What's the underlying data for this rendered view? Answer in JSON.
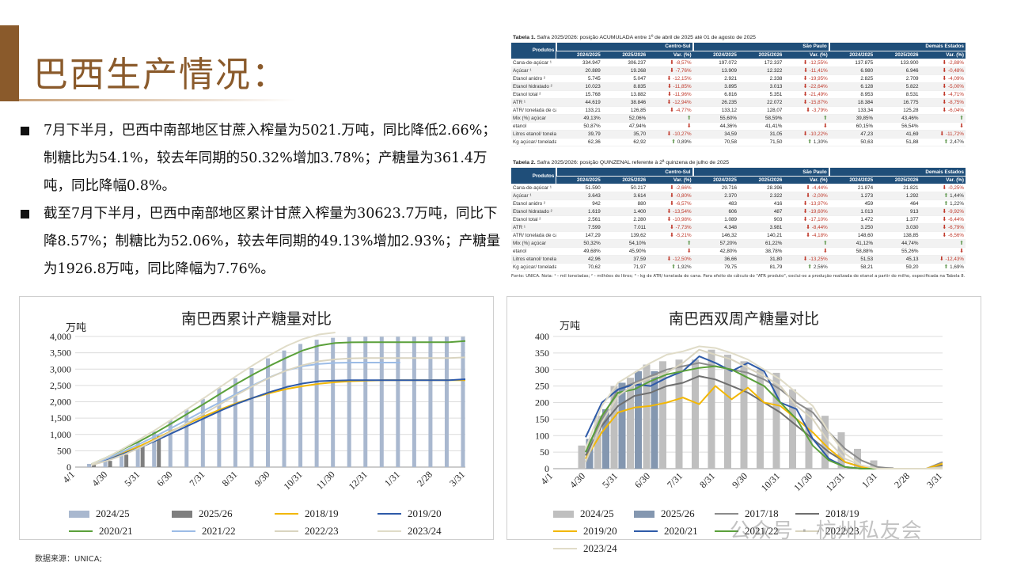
{
  "page": {
    "title": "巴西生产情况：",
    "source": "数据来源：UNICA;",
    "watermark": "公众号 · 杭州私友会"
  },
  "bullets": [
    "7月下半月，巴西中南部地区甘蔗入榨量为5021.万吨，同比降低2.66%；制糖比为54.1%，较去年同期的50.32%增加3.78%；产糖量为361.4万吨，同比降幅0.8%。",
    "截至7月下半月，巴西中南部地区累计甘蔗入榨量为30623.7万吨，同比下降8.57%；制糖比为52.06%，较去年同期的49.13%增加2.93%；产糖量为1926.8万吨，同比降幅为7.76%。"
  ],
  "table1": {
    "caption_bold": "Tabela 1.",
    "caption": " Safra 2025/2026: posição ACUMULADA entre 1º de abril de 2025 até 01 de agosto de 2025",
    "products_header": "Produtos",
    "groups": [
      "Centro-Sul",
      "São Paulo",
      "Demais Estados"
    ],
    "subheaders": [
      "2024/2025",
      "2025/2026",
      "Var. (%)"
    ],
    "rows": [
      {
        "label": "Cana-de-açúcar ¹",
        "cells": [
          "334.947",
          "306.237",
          "-8,57%",
          "197.072",
          "172.337",
          "-12,55%",
          "137.875",
          "133.900",
          "-2,88%"
        ]
      },
      {
        "label": "Açúcar ¹",
        "cells": [
          "20.889",
          "19.268",
          "-7,76%",
          "13.909",
          "12.322",
          "-11,41%",
          "6.980",
          "6.946",
          "-0,48%"
        ]
      },
      {
        "label": "Etanol anidro ²",
        "cells": [
          "5.745",
          "5.047",
          "-12,15%",
          "2.921",
          "2.338",
          "-19,95%",
          "2.825",
          "2.709",
          "-4,09%"
        ]
      },
      {
        "label": "Etanol hidratado ²",
        "cells": [
          "10.023",
          "8.835",
          "-11,85%",
          "3.895",
          "3.013",
          "-22,64%",
          "6.128",
          "5.822",
          "-5,00%"
        ]
      },
      {
        "label": "Etanol total ²",
        "cells": [
          "15.768",
          "13.882",
          "-11,96%",
          "6.816",
          "5.351",
          "-21,49%",
          "8.953",
          "8.531",
          "-4,71%"
        ]
      },
      {
        "label": "ATR ¹",
        "cells": [
          "44.619",
          "38.846",
          "-12,94%",
          "26.235",
          "22.072",
          "-15,87%",
          "18.384",
          "16.775",
          "-8,75%"
        ]
      },
      {
        "label": "ATR/ tonelada de cana ³",
        "cells": [
          "133,21",
          "126,85",
          "-4,77%",
          "133,12",
          "128,07",
          "-3,79%",
          "133,34",
          "125,28",
          "-6,04%"
        ]
      },
      {
        "label": "Mix (%) açúcar",
        "cells": [
          "49,13%",
          "52,06%",
          "",
          "55,60%",
          "58,59%",
          "",
          "39,85%",
          "43,46%",
          ""
        ]
      },
      {
        "label": "etanol",
        "cells": [
          "50,87%",
          "47,94%",
          "",
          "44,36%",
          "41,41%",
          "",
          "60,15%",
          "56,54%",
          ""
        ]
      },
      {
        "label": "Litros etanol/ tonelada de cana",
        "cells": [
          "39,79",
          "35,70",
          "-10,27%",
          "34,59",
          "31,05",
          "-10,22%",
          "47,23",
          "41,69",
          "-11,72%"
        ]
      },
      {
        "label": "Kg açúcar/ tonelada de cana",
        "cells": [
          "62,36",
          "62,92",
          "0,89%",
          "70,58",
          "71,50",
          "1,30%",
          "50,63",
          "51,88",
          "2,47%"
        ]
      }
    ]
  },
  "table2": {
    "caption_bold": "Tabela 2.",
    "caption": " Safra 2025/2026: posição QUINZENAL referente à 2ª quinzena de julho de 2025",
    "products_header": "Produtos",
    "groups": [
      "Centro-Sul",
      "São Paulo",
      "Demais Estados"
    ],
    "subheaders": [
      "2024/2025",
      "2025/2026",
      "Var. (%)"
    ],
    "rows": [
      {
        "label": "Cana-de-açúcar ¹",
        "cells": [
          "51.590",
          "50.217",
          "-2,66%",
          "29.716",
          "28.396",
          "-4,44%",
          "21.874",
          "21.821",
          "-0,25%"
        ]
      },
      {
        "label": "Açúcar ¹",
        "cells": [
          "3.643",
          "3.614",
          "-0,80%",
          "2.370",
          "2.322",
          "-2,00%",
          "1.273",
          "1.292",
          "1,44%"
        ]
      },
      {
        "label": "Etanol anidro ²",
        "cells": [
          "942",
          "880",
          "-6,57%",
          "483",
          "416",
          "-13,97%",
          "459",
          "464",
          "1,22%"
        ]
      },
      {
        "label": "Etanol hidratado ²",
        "cells": [
          "1.619",
          "1.400",
          "-13,54%",
          "606",
          "487",
          "-19,60%",
          "1.013",
          "913",
          "-9,92%"
        ]
      },
      {
        "label": "Etanol total ²",
        "cells": [
          "2.561",
          "2.280",
          "-10,98%",
          "1.089",
          "903",
          "-17,10%",
          "1.472",
          "1.377",
          "-6,44%"
        ]
      },
      {
        "label": "ATR ¹",
        "cells": [
          "7.599",
          "7.011",
          "-7,73%",
          "4.348",
          "3.981",
          "-8,44%",
          "3.250",
          "3.030",
          "-6,79%"
        ]
      },
      {
        "label": "ATR/ tonelada de cana ³",
        "cells": [
          "147,29",
          "139,62",
          "-5,21%",
          "146,32",
          "140,21",
          "-4,18%",
          "148,60",
          "138,85",
          "-6,56%"
        ]
      },
      {
        "label": "Mix (%) açúcar",
        "cells": [
          "50,32%",
          "54,10%",
          "",
          "57,20%",
          "61,22%",
          "",
          "41,12%",
          "44,74%",
          ""
        ]
      },
      {
        "label": "etanol",
        "cells": [
          "49,68%",
          "45,90%",
          "",
          "42,80%",
          "38,78%",
          "",
          "58,88%",
          "55,26%",
          ""
        ]
      },
      {
        "label": "Litros etanol/ tonelada de cana",
        "cells": [
          "42,96",
          "37,59",
          "-12,50%",
          "36,66",
          "31,80",
          "-13,25%",
          "51,53",
          "45,13",
          "-12,43%"
        ]
      },
      {
        "label": "Kg açúcar/ tonelada de cana",
        "cells": [
          "70,62",
          "71,97",
          "1,92%",
          "79,75",
          "81,79",
          "2,56%",
          "58,21",
          "59,20",
          "1,69%"
        ]
      }
    ],
    "footnote": "Fonte: UNICA. Nota: ¹ - mil toneladas; ² - milhões de litros; ³ - kg de ATR/ tonelada de cana. Para efeito do cálculo do \"ATR produto\", exclui-se a produção realizada de etanol a partir do milho, especificada na Tabela 8."
  },
  "chart_data": [
    {
      "type": "bar",
      "title": "南巴西累计产糖量对比",
      "ylabel": "万吨",
      "ylim": [
        0,
        4000
      ],
      "yticks": [
        "0",
        "500",
        "1,000",
        "1,500",
        "2,000",
        "2,500",
        "3,000",
        "3,500",
        "4,000"
      ],
      "xticks": [
        "4/1",
        "4/30",
        "5/31",
        "6/30",
        "7/31",
        "8/31",
        "9/30",
        "10/31",
        "11/30",
        "12/31",
        "1/31",
        "2/28",
        "3/31"
      ],
      "x": [
        0.5,
        1,
        1.5,
        2,
        2.5,
        3,
        3.5,
        4,
        4.5,
        5,
        5.5,
        6,
        6.5,
        7,
        7.5,
        8,
        8.5,
        9,
        9.5,
        10,
        10.5,
        11,
        11.5,
        12
      ],
      "bars": [
        {
          "name": "2024/25",
          "color": "#a9b8cf",
          "values": [
            98,
            230,
            480,
            760,
            1090,
            1430,
            1760,
            2090,
            2420,
            2720,
            3030,
            3330,
            3570,
            3770,
            3900,
            3960,
            3980,
            3990,
            3990,
            3990,
            3990,
            3990,
            3990,
            3990
          ]
        },
        {
          "name": "2025/26",
          "color": "#7f7f7f",
          "values": [
            80,
            190,
            380,
            640,
            960,
            null,
            null,
            null,
            null,
            null,
            null,
            null,
            null,
            null,
            null,
            null,
            null,
            null,
            null,
            null,
            null,
            null,
            null,
            null
          ]
        }
      ],
      "lines": [
        {
          "name": "2018/19",
          "color": "#f2b705",
          "values": [
            70,
            230,
            440,
            650,
            880,
            1120,
            1350,
            1570,
            1780,
            1970,
            2130,
            2270,
            2390,
            2480,
            2550,
            2600,
            2630,
            2650,
            2660,
            2660,
            2660,
            2660,
            2660,
            2660
          ]
        },
        {
          "name": "2019/20",
          "color": "#2e5aa8",
          "values": [
            70,
            220,
            410,
            600,
            820,
            1050,
            1280,
            1510,
            1740,
            1950,
            2130,
            2300,
            2450,
            2560,
            2630,
            2650,
            2660,
            2660,
            2660,
            2660,
            2660,
            2660,
            2660,
            2690
          ]
        },
        {
          "name": "2020/21",
          "color": "#5aa03a",
          "values": [
            90,
            310,
            560,
            800,
            1070,
            1360,
            1660,
            1960,
            2270,
            2570,
            2850,
            3110,
            3350,
            3570,
            3720,
            3800,
            3820,
            3825,
            3825,
            3825,
            3825,
            3825,
            3825,
            3860
          ]
        },
        {
          "name": "2021/22",
          "color": "#9cbce6",
          "values": [
            80,
            270,
            490,
            720,
            960,
            1220,
            1480,
            1750,
            2010,
            2270,
            2520,
            2760,
            2960,
            3090,
            3160,
            3190,
            3200,
            3200,
            3200,
            3200,
            null,
            null,
            null,
            null
          ]
        },
        {
          "name": "2022/23",
          "color": "#d9d4c0",
          "values": [
            60,
            200,
            380,
            600,
            850,
            1110,
            1380,
            1660,
            1950,
            2230,
            2500,
            2750,
            2960,
            3120,
            3240,
            3300,
            3330,
            3340,
            3340,
            3340,
            3340,
            3340,
            3340,
            3360
          ]
        },
        {
          "name": "2023/24",
          "color": "#e0dcc8",
          "values": [
            90,
            310,
            580,
            860,
            1160,
            1480,
            1810,
            2140,
            2480,
            2820,
            3140,
            3440,
            3710,
            3920,
            4060,
            4120,
            null,
            null,
            null,
            null,
            null,
            null,
            null,
            null
          ]
        }
      ]
    },
    {
      "type": "bar",
      "title": "南巴西双周产糖量对比",
      "ylabel": "万吨",
      "ylim": [
        0,
        400
      ],
      "yticks": [
        "0",
        "50",
        "100",
        "150",
        "200",
        "250",
        "300",
        "350",
        "400"
      ],
      "xticks": [
        "4/1",
        "4/30",
        "5/31",
        "6/30",
        "7/31",
        "8/31",
        "9/30",
        "10/31",
        "11/30",
        "12/31",
        "1/31",
        "2/28",
        "3/31"
      ],
      "x": [
        1,
        1.5,
        2,
        2.5,
        3,
        3.5,
        4,
        4.5,
        5,
        5.5,
        6,
        6.5,
        7,
        7.5,
        8,
        8.5,
        9,
        9.5,
        10,
        10.5,
        11,
        11.5,
        12
      ],
      "bars": [
        {
          "name": "2024/25",
          "color": "#bfbfbf",
          "values": [
            70,
            160,
            250,
            275,
            315,
            325,
            330,
            330,
            360,
            345,
            325,
            300,
            290,
            240,
            185,
            160,
            110,
            60,
            25,
            5,
            0,
            0,
            0
          ]
        },
        {
          "name": "2025/26",
          "color": "#8497b0",
          "values": [
            90,
            180,
            260,
            295,
            295,
            null,
            null,
            null,
            null,
            null,
            null,
            null,
            null,
            null,
            null,
            null,
            null,
            null,
            null,
            null,
            null,
            null,
            null
          ]
        }
      ],
      "lines": [
        {
          "name": "2017/18",
          "color": "#8c8c8c",
          "values": [
            50,
            150,
            240,
            260,
            280,
            300,
            310,
            320,
            310,
            300,
            290,
            270,
            240,
            200,
            170,
            110,
            60,
            25,
            5,
            0,
            0,
            0,
            20
          ]
        },
        {
          "name": "2018/19",
          "color": "#6f6f6f",
          "values": [
            40,
            130,
            190,
            220,
            230,
            250,
            260,
            280,
            270,
            250,
            230,
            200,
            170,
            130,
            90,
            50,
            20,
            5,
            0,
            0,
            0,
            0,
            10
          ]
        },
        {
          "name": "2019/20",
          "color": "#f2b705",
          "values": [
            30,
            110,
            170,
            185,
            190,
            200,
            215,
            195,
            250,
            210,
            245,
            200,
            190,
            150,
            110,
            60,
            20,
            5,
            0,
            0,
            0,
            0,
            15
          ]
        },
        {
          "name": "2020/21",
          "color": "#2e5aa8",
          "values": [
            95,
            200,
            240,
            255,
            250,
            275,
            295,
            340,
            320,
            295,
            320,
            295,
            200,
            180,
            90,
            30,
            5,
            0,
            0,
            0,
            0,
            0,
            0
          ]
        },
        {
          "name": "2021/22",
          "color": "#5aa03a",
          "values": [
            50,
            160,
            230,
            240,
            265,
            285,
            295,
            305,
            310,
            300,
            275,
            250,
            200,
            150,
            70,
            25,
            5,
            0,
            0,
            0,
            0,
            0,
            0
          ]
        },
        {
          "name": "2022/23",
          "color": "#d9d4c0",
          "values": [
            20,
            140,
            220,
            255,
            275,
            290,
            320,
            360,
            345,
            330,
            305,
            280,
            250,
            190,
            150,
            80,
            30,
            10,
            0,
            0,
            0,
            0,
            5
          ]
        },
        {
          "name": "2023/24",
          "color": "#e0dcc8",
          "values": [
            60,
            190,
            260,
            290,
            320,
            345,
            355,
            370,
            365,
            350,
            330,
            300,
            270,
            230,
            190,
            110,
            45,
            10,
            0,
            0,
            0,
            0,
            0
          ]
        }
      ]
    }
  ]
}
